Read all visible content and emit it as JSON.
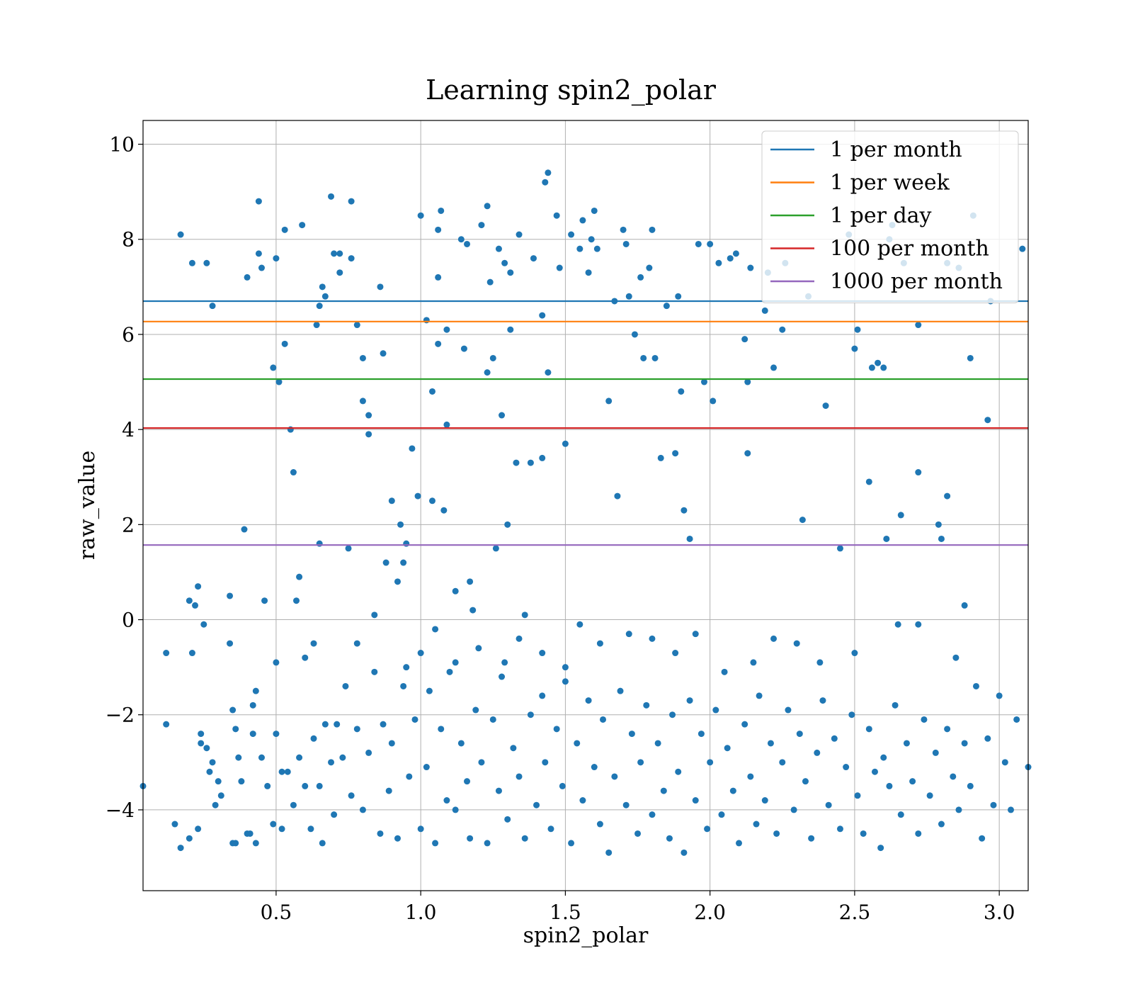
{
  "chart_data": {
    "type": "scatter",
    "title": "Learning spin2_polar",
    "xlabel": "spin2_polar",
    "ylabel": "raw_value",
    "xlim": [
      0.04,
      3.1
    ],
    "ylim": [
      -5.7,
      10.5
    ],
    "x_ticks": [
      0.5,
      1.0,
      1.5,
      2.0,
      2.5,
      3.0
    ],
    "x_tick_labels": [
      "0.5",
      "1.0",
      "1.5",
      "2.0",
      "2.5",
      "3.0"
    ],
    "y_ticks": [
      -4,
      -2,
      0,
      2,
      4,
      6,
      8,
      10
    ],
    "y_tick_labels": [
      "−4",
      "−2",
      "0",
      "2",
      "4",
      "6",
      "8",
      "10"
    ],
    "grid": true,
    "legend_position": "top-right",
    "point_color": "#1f77b4",
    "point_count_note": "approximately 1000 points; only a representative subset of visible points is listed",
    "points": [
      [
        0.04,
        -3.5
      ],
      [
        0.12,
        -0.7
      ],
      [
        0.12,
        -2.2
      ],
      [
        0.17,
        8.1
      ],
      [
        0.2,
        0.4
      ],
      [
        0.21,
        7.5
      ],
      [
        0.21,
        -0.7
      ],
      [
        0.22,
        0.3
      ],
      [
        0.23,
        0.7
      ],
      [
        0.24,
        -2.4
      ],
      [
        0.25,
        -0.1
      ],
      [
        0.26,
        7.5
      ],
      [
        0.27,
        -3.2
      ],
      [
        0.28,
        6.6
      ],
      [
        0.29,
        -3.9
      ],
      [
        0.3,
        -3.4
      ],
      [
        0.34,
        0.5
      ],
      [
        0.34,
        -0.5
      ],
      [
        0.35,
        -1.9
      ],
      [
        0.36,
        -4.7
      ],
      [
        0.37,
        -2.9
      ],
      [
        0.39,
        1.9
      ],
      [
        0.4,
        7.2
      ],
      [
        0.41,
        -4.5
      ],
      [
        0.42,
        -1.8
      ],
      [
        0.43,
        -1.5
      ],
      [
        0.44,
        8.8
      ],
      [
        0.44,
        7.7
      ],
      [
        0.45,
        7.4
      ],
      [
        0.46,
        0.4
      ],
      [
        0.49,
        5.3
      ],
      [
        0.5,
        -0.9
      ],
      [
        0.5,
        7.6
      ],
      [
        0.51,
        5.0
      ],
      [
        0.52,
        -3.2
      ],
      [
        0.53,
        8.2
      ],
      [
        0.53,
        5.8
      ],
      [
        0.55,
        4.0
      ],
      [
        0.56,
        3.1
      ],
      [
        0.57,
        0.4
      ],
      [
        0.58,
        0.9
      ],
      [
        0.59,
        8.3
      ],
      [
        0.6,
        -0.8
      ],
      [
        0.63,
        -0.5
      ],
      [
        0.64,
        6.2
      ],
      [
        0.65,
        1.6
      ],
      [
        0.65,
        6.6
      ],
      [
        0.66,
        7.0
      ],
      [
        0.67,
        6.8
      ],
      [
        0.69,
        8.9
      ],
      [
        0.7,
        7.7
      ],
      [
        0.72,
        7.3
      ],
      [
        0.72,
        7.7
      ],
      [
        0.75,
        1.5
      ],
      [
        0.76,
        7.6
      ],
      [
        0.76,
        8.8
      ],
      [
        0.78,
        6.2
      ],
      [
        0.8,
        4.6
      ],
      [
        0.8,
        5.5
      ],
      [
        0.82,
        4.3
      ],
      [
        0.82,
        3.9
      ],
      [
        0.84,
        0.1
      ],
      [
        0.86,
        7.0
      ],
      [
        0.87,
        5.6
      ],
      [
        0.88,
        1.2
      ],
      [
        0.9,
        2.5
      ],
      [
        0.92,
        0.8
      ],
      [
        0.93,
        2.0
      ],
      [
        0.94,
        1.2
      ],
      [
        0.95,
        1.6
      ],
      [
        0.97,
        3.6
      ],
      [
        0.99,
        2.6
      ],
      [
        1.0,
        -0.7
      ],
      [
        1.0,
        8.5
      ],
      [
        1.02,
        6.3
      ],
      [
        1.04,
        4.8
      ],
      [
        1.04,
        2.5
      ],
      [
        1.06,
        5.8
      ],
      [
        1.06,
        8.2
      ],
      [
        1.06,
        7.2
      ],
      [
        1.07,
        8.6
      ],
      [
        1.08,
        2.3
      ],
      [
        1.09,
        6.1
      ],
      [
        1.09,
        4.1
      ],
      [
        1.12,
        0.6
      ],
      [
        1.14,
        8.0
      ],
      [
        1.15,
        5.7
      ],
      [
        1.16,
        7.9
      ],
      [
        1.17,
        0.8
      ],
      [
        1.18,
        0.2
      ],
      [
        1.21,
        8.3
      ],
      [
        1.23,
        5.2
      ],
      [
        1.23,
        8.7
      ],
      [
        1.24,
        7.1
      ],
      [
        1.25,
        5.5
      ],
      [
        1.26,
        1.5
      ],
      [
        1.27,
        7.8
      ],
      [
        1.28,
        4.3
      ],
      [
        1.29,
        7.5
      ],
      [
        1.3,
        2.0
      ],
      [
        1.31,
        7.3
      ],
      [
        1.31,
        6.1
      ],
      [
        1.33,
        3.3
      ],
      [
        1.34,
        8.1
      ],
      [
        1.36,
        0.1
      ],
      [
        1.38,
        3.3
      ],
      [
        1.39,
        7.6
      ],
      [
        1.42,
        6.4
      ],
      [
        1.42,
        3.4
      ],
      [
        1.43,
        9.2
      ],
      [
        1.44,
        9.4
      ],
      [
        1.44,
        5.2
      ],
      [
        1.47,
        8.5
      ],
      [
        1.48,
        7.4
      ],
      [
        1.5,
        3.7
      ],
      [
        1.52,
        8.1
      ],
      [
        1.55,
        7.8
      ],
      [
        1.56,
        8.4
      ],
      [
        1.58,
        7.3
      ],
      [
        1.59,
        8.0
      ],
      [
        1.6,
        8.6
      ],
      [
        1.61,
        7.8
      ],
      [
        1.65,
        4.6
      ],
      [
        1.67,
        6.7
      ],
      [
        1.68,
        2.6
      ],
      [
        1.7,
        8.2
      ],
      [
        1.71,
        7.9
      ],
      [
        1.72,
        6.8
      ],
      [
        1.74,
        6.0
      ],
      [
        1.76,
        7.2
      ],
      [
        1.77,
        5.5
      ],
      [
        1.79,
        7.4
      ],
      [
        1.8,
        8.2
      ],
      [
        1.81,
        5.5
      ],
      [
        1.83,
        3.4
      ],
      [
        1.85,
        6.6
      ],
      [
        1.88,
        3.5
      ],
      [
        1.89,
        6.8
      ],
      [
        1.9,
        4.8
      ],
      [
        1.91,
        2.3
      ],
      [
        1.93,
        1.7
      ],
      [
        1.96,
        7.9
      ],
      [
        1.98,
        5.0
      ],
      [
        2.0,
        7.9
      ],
      [
        2.01,
        4.6
      ],
      [
        2.03,
        7.5
      ],
      [
        2.07,
        7.6
      ],
      [
        2.09,
        7.7
      ],
      [
        2.12,
        5.9
      ],
      [
        2.13,
        5.0
      ],
      [
        2.13,
        3.5
      ],
      [
        2.14,
        7.4
      ],
      [
        2.19,
        6.5
      ],
      [
        2.2,
        7.3
      ],
      [
        2.22,
        5.3
      ],
      [
        2.25,
        6.1
      ],
      [
        2.26,
        7.5
      ],
      [
        2.32,
        2.1
      ],
      [
        2.34,
        6.8
      ],
      [
        2.4,
        4.5
      ],
      [
        2.45,
        1.5
      ],
      [
        2.48,
        8.1
      ],
      [
        2.5,
        5.7
      ],
      [
        2.51,
        6.1
      ],
      [
        2.55,
        2.9
      ],
      [
        2.56,
        5.3
      ],
      [
        2.58,
        5.4
      ],
      [
        2.6,
        5.3
      ],
      [
        2.61,
        1.7
      ],
      [
        2.62,
        8.0
      ],
      [
        2.63,
        8.3
      ],
      [
        2.66,
        2.2
      ],
      [
        2.67,
        7.5
      ],
      [
        2.72,
        3.1
      ],
      [
        2.72,
        6.2
      ],
      [
        2.79,
        2.0
      ],
      [
        2.8,
        1.7
      ],
      [
        2.82,
        2.6
      ],
      [
        2.82,
        7.5
      ],
      [
        2.86,
        7.4
      ],
      [
        2.88,
        0.3
      ],
      [
        2.9,
        5.5
      ],
      [
        2.91,
        8.5
      ],
      [
        2.96,
        4.2
      ],
      [
        2.97,
        6.7
      ],
      [
        3.08,
        7.8
      ],
      [
        0.15,
        -4.3
      ],
      [
        0.17,
        -4.8
      ],
      [
        0.2,
        -4.6
      ],
      [
        0.23,
        -4.4
      ],
      [
        0.24,
        -2.6
      ],
      [
        0.26,
        -2.7
      ],
      [
        0.28,
        -3.0
      ],
      [
        0.31,
        -3.7
      ],
      [
        0.35,
        -4.7
      ],
      [
        0.36,
        -2.3
      ],
      [
        0.38,
        -3.4
      ],
      [
        0.4,
        -4.5
      ],
      [
        0.42,
        -2.4
      ],
      [
        0.43,
        -4.7
      ],
      [
        0.45,
        -2.9
      ],
      [
        0.47,
        -3.5
      ],
      [
        0.49,
        -4.3
      ],
      [
        0.5,
        -2.4
      ],
      [
        0.52,
        -4.4
      ],
      [
        0.54,
        -3.2
      ],
      [
        0.56,
        -3.9
      ],
      [
        0.58,
        -2.9
      ],
      [
        0.6,
        -3.5
      ],
      [
        0.62,
        -4.4
      ],
      [
        0.63,
        -2.5
      ],
      [
        0.65,
        -3.5
      ],
      [
        0.66,
        -4.7
      ],
      [
        0.67,
        -2.2
      ],
      [
        0.69,
        -3.0
      ],
      [
        0.7,
        -4.1
      ],
      [
        0.71,
        -2.2
      ],
      [
        0.73,
        -2.9
      ],
      [
        0.74,
        -1.4
      ],
      [
        0.76,
        -3.7
      ],
      [
        0.78,
        -2.3
      ],
      [
        0.8,
        -4.0
      ],
      [
        0.82,
        -2.8
      ],
      [
        0.84,
        -1.1
      ],
      [
        0.86,
        -4.5
      ],
      [
        0.87,
        -2.2
      ],
      [
        0.89,
        -3.6
      ],
      [
        0.9,
        -2.6
      ],
      [
        0.92,
        -4.6
      ],
      [
        0.94,
        -1.4
      ],
      [
        0.96,
        -3.3
      ],
      [
        0.98,
        -2.1
      ],
      [
        1.0,
        -4.4
      ],
      [
        1.02,
        -3.1
      ],
      [
        1.03,
        -1.5
      ],
      [
        1.05,
        -4.7
      ],
      [
        1.07,
        -2.3
      ],
      [
        1.09,
        -3.8
      ],
      [
        1.1,
        -1.1
      ],
      [
        1.12,
        -4.0
      ],
      [
        1.14,
        -2.6
      ],
      [
        1.16,
        -3.4
      ],
      [
        1.17,
        -4.6
      ],
      [
        1.19,
        -1.9
      ],
      [
        1.21,
        -3.0
      ],
      [
        1.23,
        -4.7
      ],
      [
        1.25,
        -2.1
      ],
      [
        1.27,
        -3.6
      ],
      [
        1.28,
        -1.2
      ],
      [
        1.3,
        -4.2
      ],
      [
        1.32,
        -2.7
      ],
      [
        1.34,
        -3.3
      ],
      [
        1.36,
        -4.6
      ],
      [
        1.38,
        -2.0
      ],
      [
        1.4,
        -3.9
      ],
      [
        1.42,
        -1.6
      ],
      [
        1.43,
        -3.0
      ],
      [
        1.45,
        -4.4
      ],
      [
        1.47,
        -2.3
      ],
      [
        1.49,
        -3.5
      ],
      [
        1.5,
        -1.3
      ],
      [
        1.52,
        -4.7
      ],
      [
        1.54,
        -2.6
      ],
      [
        1.56,
        -3.8
      ],
      [
        1.58,
        -1.7
      ],
      [
        1.6,
        -3.1
      ],
      [
        1.62,
        -4.3
      ],
      [
        1.63,
        -2.1
      ],
      [
        1.65,
        -4.9
      ],
      [
        1.67,
        -3.3
      ],
      [
        1.69,
        -1.5
      ],
      [
        1.71,
        -3.9
      ],
      [
        1.73,
        -2.4
      ],
      [
        1.75,
        -4.5
      ],
      [
        1.76,
        -3.0
      ],
      [
        1.78,
        -1.8
      ],
      [
        1.8,
        -4.1
      ],
      [
        1.82,
        -2.6
      ],
      [
        1.84,
        -3.6
      ],
      [
        1.86,
        -4.6
      ],
      [
        1.87,
        -2.0
      ],
      [
        1.89,
        -3.2
      ],
      [
        1.91,
        -4.9
      ],
      [
        1.93,
        -1.7
      ],
      [
        1.95,
        -3.8
      ],
      [
        1.97,
        -2.4
      ],
      [
        1.99,
        -4.4
      ],
      [
        2.0,
        -3.0
      ],
      [
        2.02,
        -1.9
      ],
      [
        2.04,
        -4.1
      ],
      [
        2.06,
        -2.7
      ],
      [
        2.08,
        -3.6
      ],
      [
        2.1,
        -4.7
      ],
      [
        2.12,
        -2.2
      ],
      [
        2.14,
        -3.3
      ],
      [
        2.16,
        -4.3
      ],
      [
        2.17,
        -1.6
      ],
      [
        2.19,
        -3.8
      ],
      [
        2.21,
        -2.6
      ],
      [
        2.23,
        -4.5
      ],
      [
        2.25,
        -3.0
      ],
      [
        2.27,
        -1.9
      ],
      [
        2.29,
        -4.0
      ],
      [
        2.31,
        -2.4
      ],
      [
        2.33,
        -3.4
      ],
      [
        2.35,
        -4.6
      ],
      [
        2.37,
        -2.8
      ],
      [
        2.39,
        -1.7
      ],
      [
        2.41,
        -3.9
      ],
      [
        2.43,
        -2.5
      ],
      [
        2.45,
        -4.4
      ],
      [
        2.47,
        -3.1
      ],
      [
        2.49,
        -2.0
      ],
      [
        2.51,
        -3.7
      ],
      [
        2.53,
        -4.5
      ],
      [
        2.55,
        -2.3
      ],
      [
        2.57,
        -3.2
      ],
      [
        2.59,
        -4.8
      ],
      [
        2.6,
        -2.9
      ],
      [
        2.62,
        -3.5
      ],
      [
        2.64,
        -1.8
      ],
      [
        2.66,
        -4.1
      ],
      [
        2.68,
        -2.6
      ],
      [
        2.7,
        -3.4
      ],
      [
        2.72,
        -4.5
      ],
      [
        2.74,
        -2.1
      ],
      [
        2.76,
        -3.7
      ],
      [
        2.78,
        -2.8
      ],
      [
        2.8,
        -4.3
      ],
      [
        2.82,
        -2.3
      ],
      [
        2.84,
        -3.3
      ],
      [
        2.86,
        -4.0
      ],
      [
        2.88,
        -2.6
      ],
      [
        2.9,
        -3.5
      ],
      [
        2.92,
        -1.4
      ],
      [
        2.94,
        -4.6
      ],
      [
        2.96,
        -2.5
      ],
      [
        2.98,
        -3.9
      ],
      [
        3.0,
        -1.6
      ],
      [
        3.02,
        -3.0
      ],
      [
        3.04,
        -4.0
      ],
      [
        3.06,
        -2.1
      ],
      [
        3.1,
        -3.1
      ],
      [
        0.78,
        -0.5
      ],
      [
        0.95,
        -1.0
      ],
      [
        1.05,
        -0.2
      ],
      [
        1.12,
        -0.9
      ],
      [
        1.2,
        -0.6
      ],
      [
        1.29,
        -0.9
      ],
      [
        1.34,
        -0.4
      ],
      [
        1.42,
        -0.7
      ],
      [
        1.5,
        -1.0
      ],
      [
        1.55,
        -0.1
      ],
      [
        1.62,
        -0.5
      ],
      [
        1.72,
        -0.3
      ],
      [
        1.8,
        -0.4
      ],
      [
        1.88,
        -0.7
      ],
      [
        1.95,
        -0.3
      ],
      [
        2.05,
        -1.1
      ],
      [
        2.15,
        -0.9
      ],
      [
        2.22,
        -0.4
      ],
      [
        2.3,
        -0.5
      ],
      [
        2.38,
        -0.9
      ],
      [
        2.5,
        -0.7
      ],
      [
        2.65,
        -0.1
      ],
      [
        2.72,
        -0.1
      ],
      [
        2.85,
        -0.8
      ]
    ],
    "series": [
      {
        "name": "1 per month",
        "value": 6.7,
        "color": "#1f77b4"
      },
      {
        "name": "1 per week",
        "value": 6.27,
        "color": "#ff7f0e"
      },
      {
        "name": "1 per day",
        "value": 5.06,
        "color": "#2ca02c"
      },
      {
        "name": "100 per month",
        "value": 4.03,
        "color": "#d62728"
      },
      {
        "name": "1000 per month",
        "value": 1.57,
        "color": "#9467bd"
      }
    ]
  }
}
